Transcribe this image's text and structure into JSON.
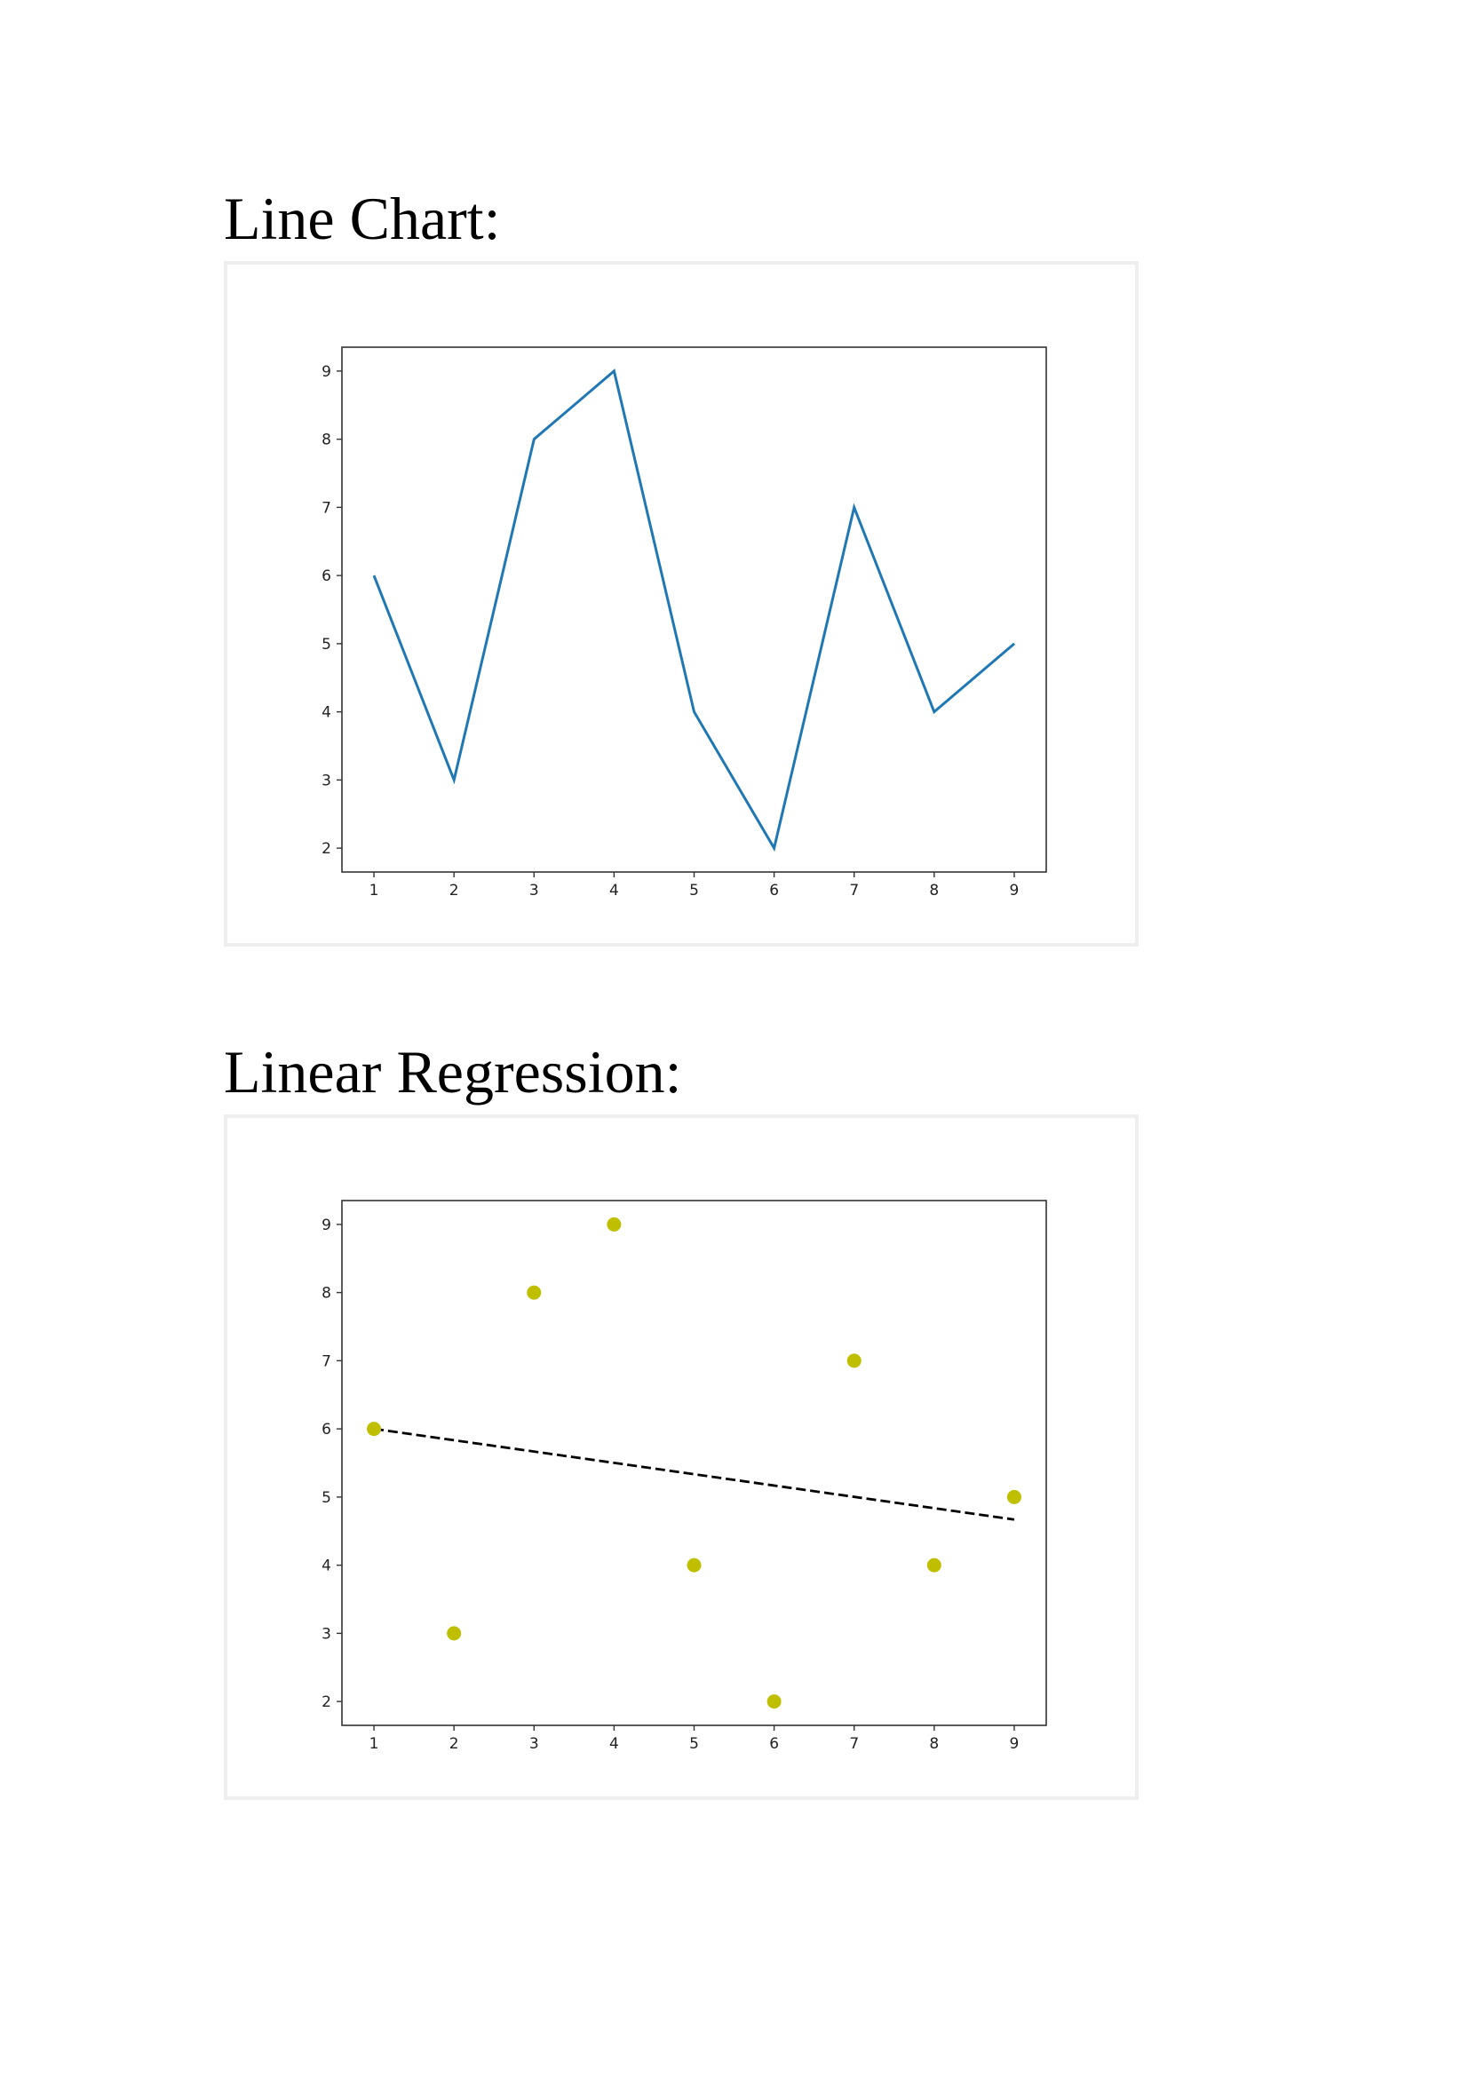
{
  "sections": [
    {
      "heading": "Line Chart:",
      "chart_index": 0
    },
    {
      "heading": "Linear Regression:",
      "chart_index": 1
    }
  ],
  "chart_data": [
    {
      "type": "line",
      "title": "",
      "xlabel": "",
      "ylabel": "",
      "x": [
        1,
        2,
        3,
        4,
        5,
        6,
        7,
        8,
        9
      ],
      "series": [
        {
          "values": [
            6,
            3,
            8,
            9,
            4,
            2,
            7,
            4,
            5
          ],
          "color": "#1f77b4"
        }
      ],
      "xlim": [
        0.6,
        9.4
      ],
      "ylim": [
        1.65,
        9.35
      ],
      "xticks": [
        1,
        2,
        3,
        4,
        5,
        6,
        7,
        8,
        9
      ],
      "yticks": [
        2,
        3,
        4,
        5,
        6,
        7,
        8,
        9
      ],
      "grid": false,
      "legend": "none"
    },
    {
      "type": "scatter",
      "title": "",
      "xlabel": "",
      "ylabel": "",
      "x": [
        1,
        2,
        3,
        4,
        5,
        6,
        7,
        8,
        9
      ],
      "series": [
        {
          "values": [
            6,
            3,
            8,
            9,
            4,
            2,
            7,
            4,
            5
          ],
          "color": "#bfbf00",
          "marker": "circle"
        }
      ],
      "fit_line": {
        "x": [
          1,
          9
        ],
        "y": [
          6.0,
          4.67
        ],
        "color": "#000000",
        "style": "dashed"
      },
      "xlim": [
        0.6,
        9.4
      ],
      "ylim": [
        1.65,
        9.35
      ],
      "xticks": [
        1,
        2,
        3,
        4,
        5,
        6,
        7,
        8,
        9
      ],
      "yticks": [
        2,
        3,
        4,
        5,
        6,
        7,
        8,
        9
      ],
      "grid": false,
      "legend": "none"
    }
  ]
}
